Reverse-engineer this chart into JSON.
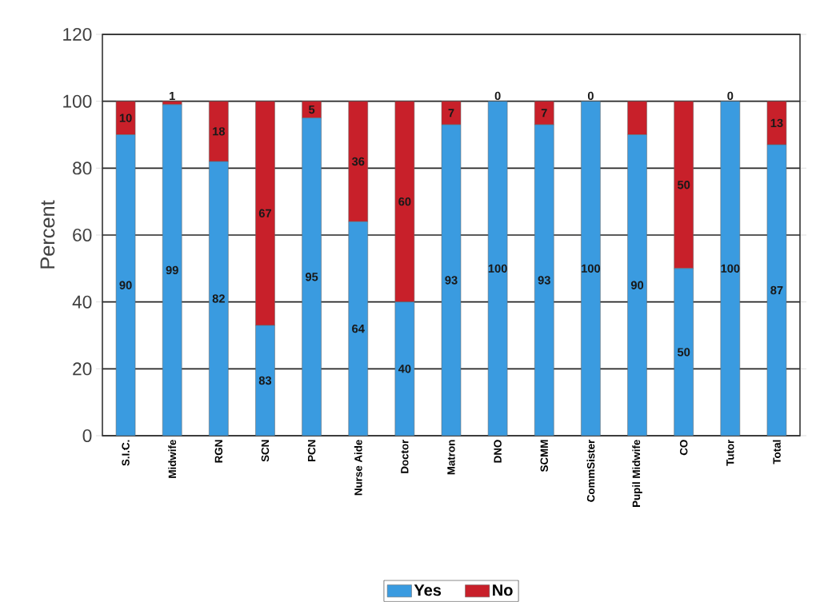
{
  "chart_data": {
    "type": "bar",
    "stacked": true,
    "ylabel": "Percent",
    "categories": [
      "S.I.C.",
      "Midwife",
      "RGN",
      "SCN",
      "PCN",
      "Nurse Aide",
      "Doctor",
      "Matron",
      "DNO",
      "SCMM",
      "CommSister",
      "Pupil Midwife",
      "CO",
      "Tutor",
      "Total"
    ],
    "series": [
      {
        "name": "Yes",
        "color": "#3a9be0",
        "values": [
          90,
          99,
          82,
          33,
          95,
          64,
          40,
          93,
          100,
          93,
          100,
          90,
          50,
          100,
          87
        ],
        "value_labels": [
          "90",
          "99",
          "82",
          null,
          "95",
          "64",
          "40",
          "93",
          "100",
          "93",
          "100",
          "90",
          "50",
          "100",
          "87"
        ]
      },
      {
        "name": "No",
        "color": "#c8202a",
        "values": [
          10,
          1,
          18,
          67,
          5,
          36,
          60,
          7,
          0,
          7,
          0,
          10,
          50,
          0,
          13
        ],
        "value_labels": [
          "10",
          "1",
          "18",
          "67",
          "5",
          "36",
          "60",
          "7",
          "0",
          "7",
          "0",
          null,
          "50",
          "0",
          "13"
        ]
      }
    ],
    "annotations": [
      "83"
    ],
    "ylim": [
      0,
      120
    ],
    "yticks": [
      0,
      20,
      40,
      60,
      80,
      100,
      120
    ],
    "grid": "y",
    "legend": "bottom"
  }
}
